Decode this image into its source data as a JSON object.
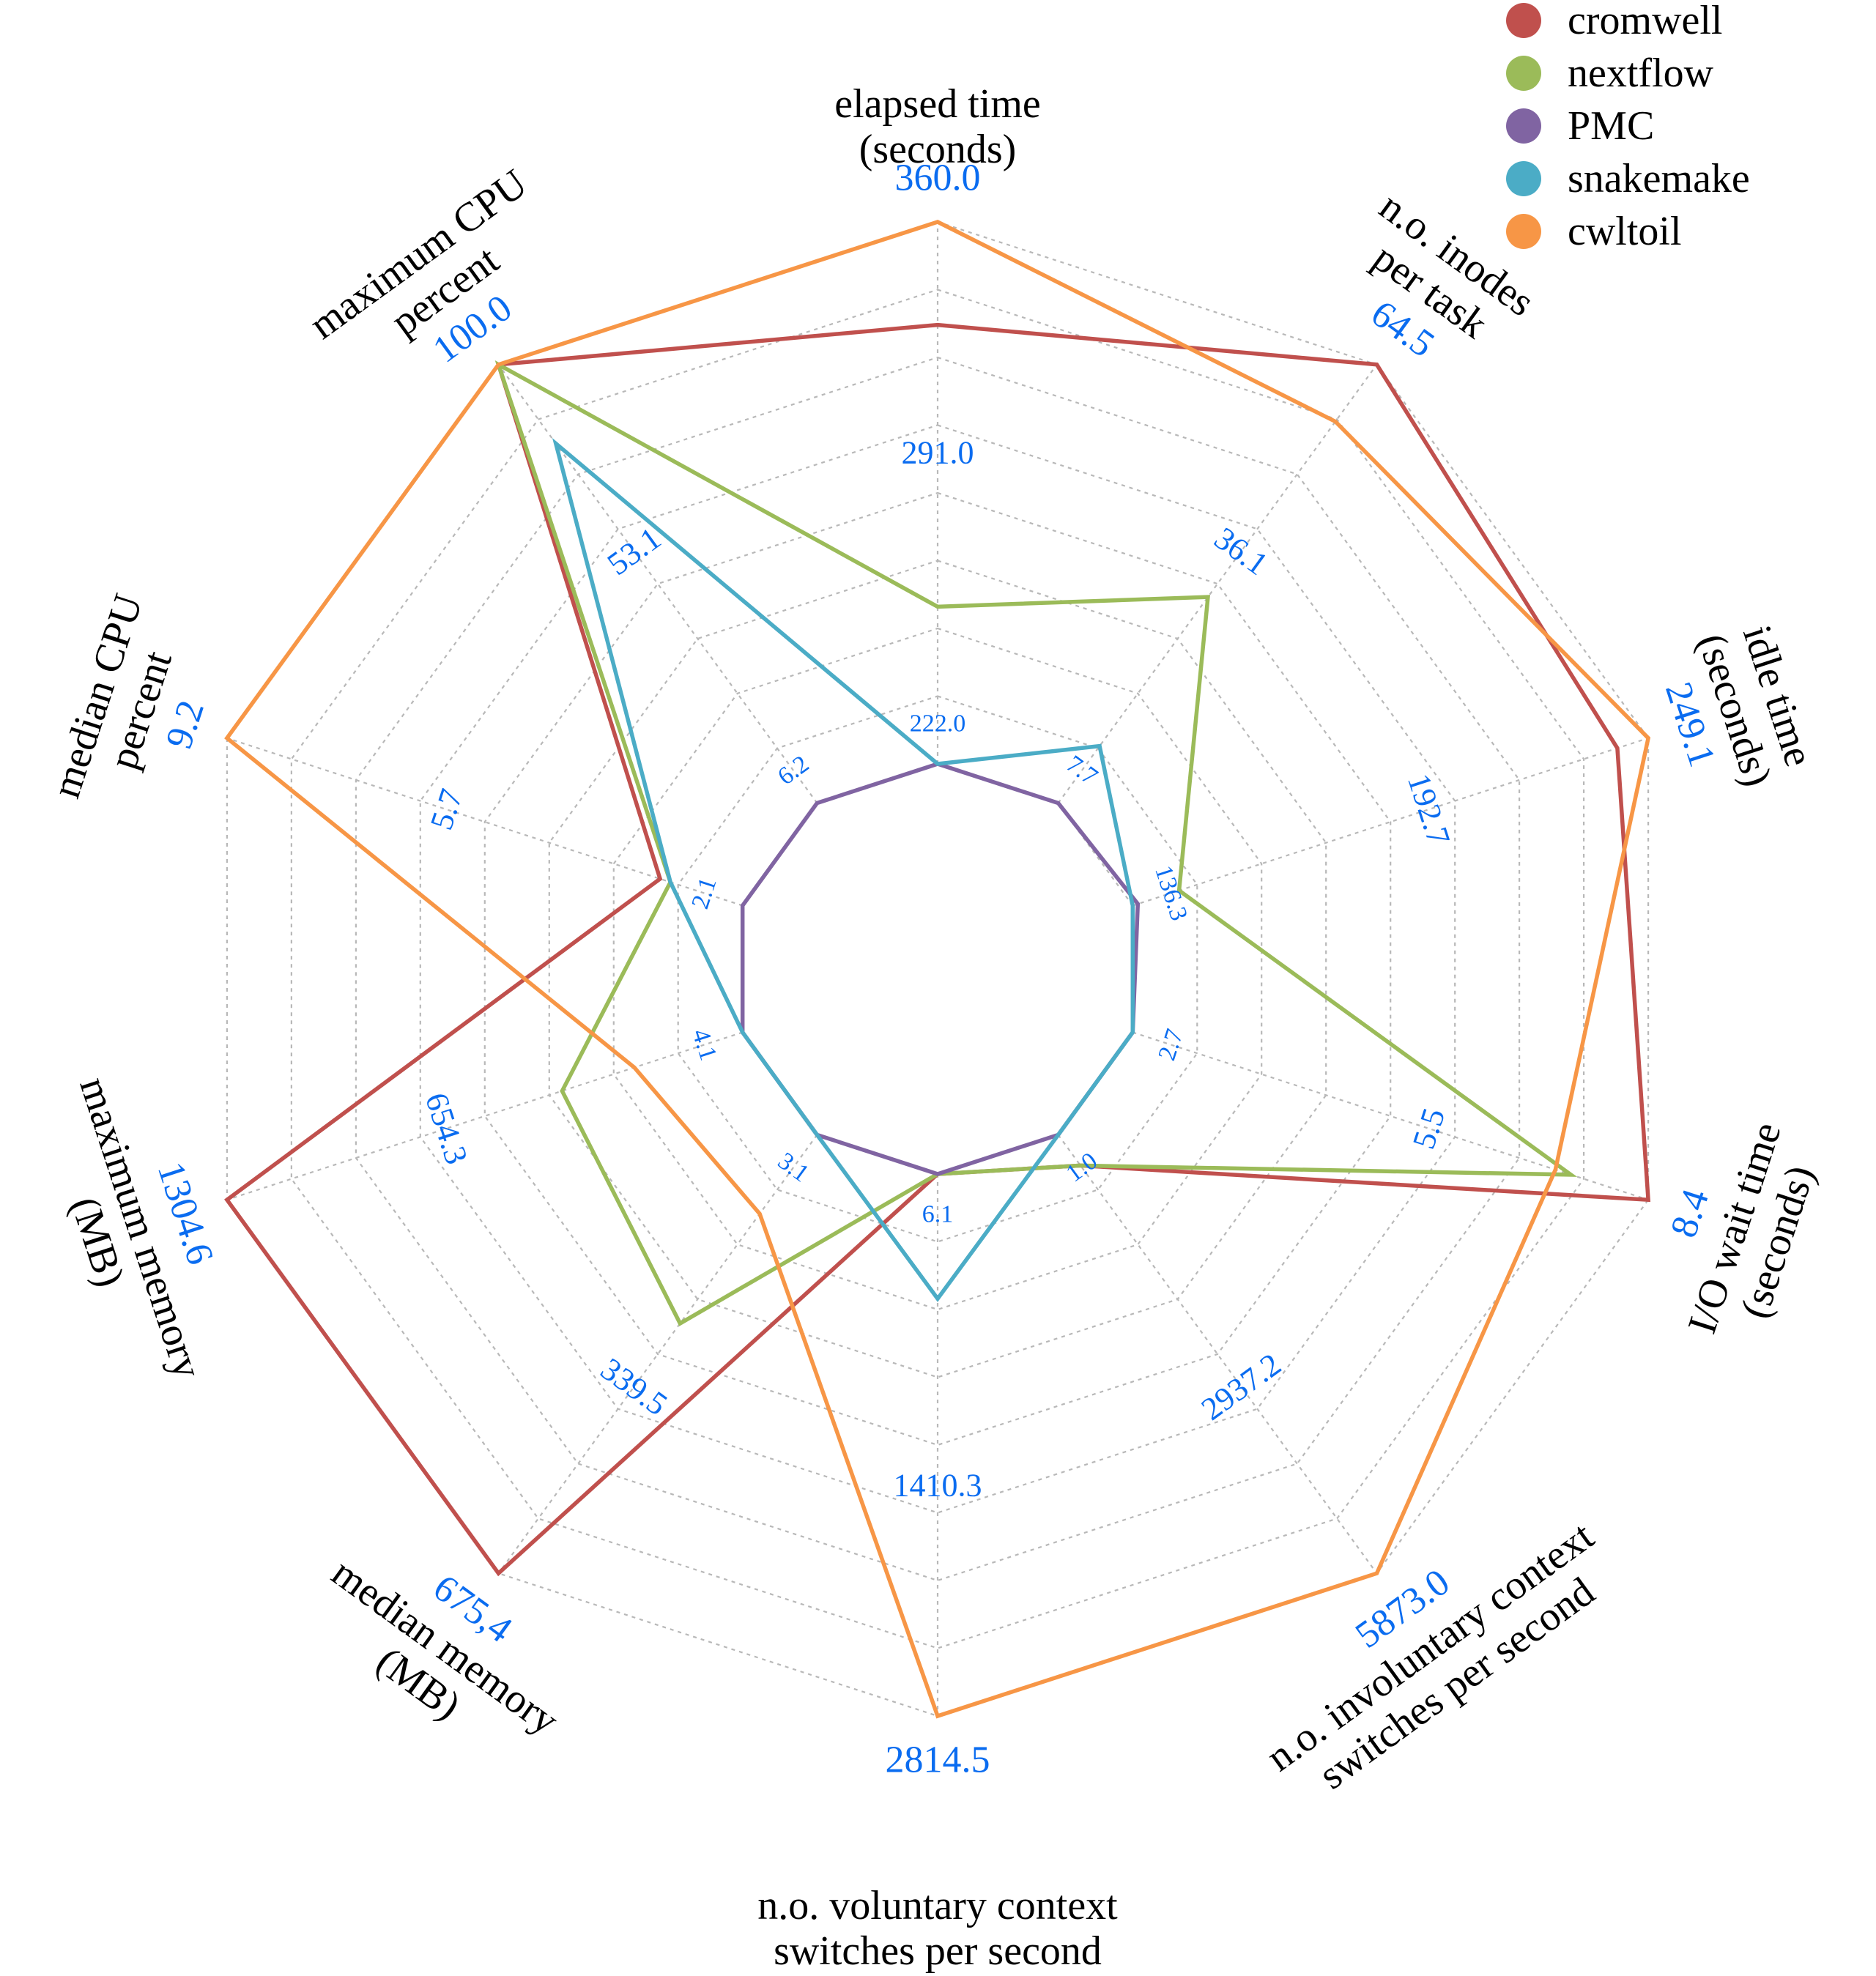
{
  "chart_data": {
    "type": "radar",
    "axes": [
      {
        "label": [
          "elapsed time",
          "(seconds)"
        ],
        "ticks": [
          "222.0",
          "291.0",
          "360.0"
        ]
      },
      {
        "label": [
          "n.o. inodes",
          "per task"
        ],
        "ticks": [
          "7.7",
          "36.1",
          "64.5"
        ]
      },
      {
        "label": [
          "idle time",
          "(seconds)"
        ],
        "ticks": [
          "136.3",
          "192.7",
          "249.1"
        ]
      },
      {
        "label": [
          "I/O wait time",
          "(seconds)"
        ],
        "ticks": [
          "2.7",
          "5.5",
          "8.4"
        ]
      },
      {
        "label": [
          "n.o. involuntary context",
          "switches per second"
        ],
        "ticks": [
          "1.0",
          "2937.2",
          "5873.0"
        ]
      },
      {
        "label": [
          "n.o. voluntary context",
          "switches per second"
        ],
        "ticks": [
          "6.1",
          "1410.3",
          "2814.5"
        ]
      },
      {
        "label": [
          "median memory",
          "(MB)"
        ],
        "ticks": [
          "3.1",
          "339.5",
          "675,4"
        ]
      },
      {
        "label": [
          "maximum memory",
          "(MB)"
        ],
        "ticks": [
          "4.1",
          "654.3",
          "1304.6"
        ]
      },
      {
        "label": [
          "median CPU",
          "percent"
        ],
        "ticks": [
          "2.1",
          "5.7",
          "9.2"
        ]
      },
      {
        "label": [
          "maximum CPU",
          "percent"
        ],
        "ticks": [
          "6.2",
          "53.1",
          "100.0"
        ]
      }
    ],
    "grid": true,
    "legend_position": "top-right",
    "series": [
      {
        "name": "cromwell",
        "color": "#C0504D",
        "values": [
          0.81,
          1.0,
          0.94,
          1.0,
          0.07,
          0.0,
          1.0,
          1.0,
          0.16,
          1.0
        ]
      },
      {
        "name": "nextflow",
        "color": "#9BBB59",
        "values": [
          0.29,
          0.47,
          0.09,
          0.85,
          0.07,
          0.0,
          0.43,
          0.35,
          0.14,
          1.0
        ]
      },
      {
        "name": "PMC",
        "color": "#8064A2",
        "values": [
          0.0,
          0.0,
          0.01,
          0.0,
          0.0,
          0.0,
          0.0,
          0.0,
          0.0,
          0.0
        ]
      },
      {
        "name": "snakemake",
        "color": "#4BACC6",
        "values": [
          0.0,
          0.13,
          0.0,
          0.0,
          0.0,
          0.23,
          0.0,
          0.0,
          0.14,
          0.82
        ]
      },
      {
        "name": "cwltoil",
        "color": "#F79646",
        "values": [
          1.0,
          0.87,
          1.0,
          0.82,
          1.0,
          1.0,
          0.18,
          0.21,
          1.0,
          1.0
        ]
      }
    ]
  }
}
